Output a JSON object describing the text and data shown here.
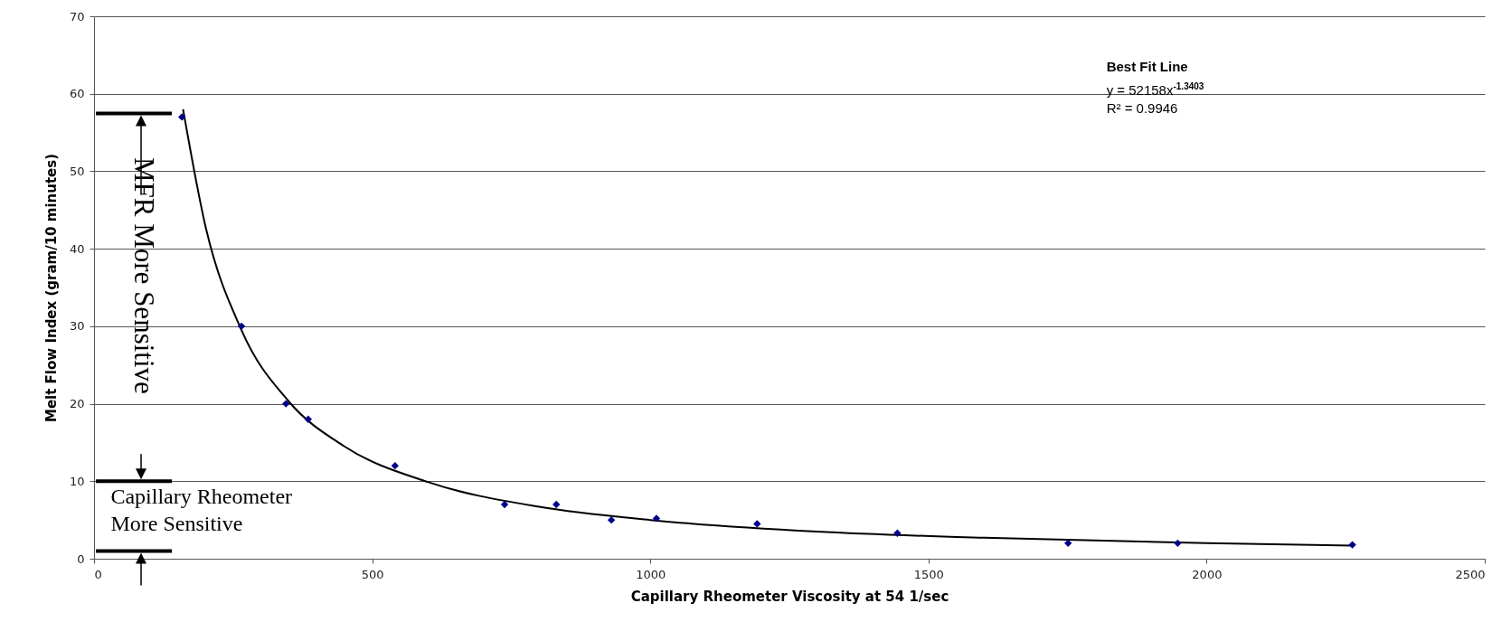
{
  "chart_data": {
    "type": "scatter",
    "xlabel": "Capillary Rheometer Viscosity at 54 1/sec",
    "ylabel": "Melt Flow Index (gram/10 minutes)",
    "series": [
      {
        "marker": "diamond",
        "color": "#00008b",
        "x": [
          158,
          265,
          345,
          385,
          541,
          738,
          831,
          930,
          1011,
          1192,
          1444,
          1751,
          1948,
          2262
        ],
        "values": [
          57,
          30,
          20,
          18,
          12,
          7,
          7,
          5,
          5.2,
          4.5,
          3.3,
          2,
          2,
          1.8
        ]
      },
      {
        "type": "line",
        "color": "#000000",
        "x": [
          160,
          200,
          265,
          350,
          450,
          600,
          800,
          1000,
          1300,
          1600,
          2000,
          2262
        ],
        "values": [
          58,
          43,
          29.5,
          20.3,
          14.5,
          9.9,
          6.7,
          5,
          3.5,
          2.7,
          2,
          1.7
        ]
      }
    ],
    "xlim": [
      0,
      2500
    ],
    "xticks": [
      0,
      500,
      1000,
      1500,
      2000,
      2500
    ],
    "ylim": [
      0,
      70
    ],
    "yticks": [
      0,
      10,
      20,
      30,
      40,
      50,
      60,
      70
    ],
    "grid": "y",
    "annotations": [
      "Best Fit Line",
      "y = 52158x$^{-1.3403}$",
      "R² = 0.9946",
      "MFR More Sensitive",
      "Capillary Rheometer More Sensitive"
    ]
  }
}
